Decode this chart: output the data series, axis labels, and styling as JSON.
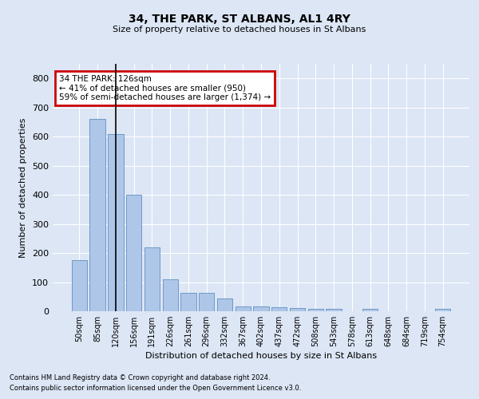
{
  "title": "34, THE PARK, ST ALBANS, AL1 4RY",
  "subtitle": "Size of property relative to detached houses in St Albans",
  "xlabel": "Distribution of detached houses by size in St Albans",
  "ylabel": "Number of detached properties",
  "footnote1": "Contains HM Land Registry data © Crown copyright and database right 2024.",
  "footnote2": "Contains public sector information licensed under the Open Government Licence v3.0.",
  "bar_labels": [
    "50sqm",
    "85sqm",
    "120sqm",
    "156sqm",
    "191sqm",
    "226sqm",
    "261sqm",
    "296sqm",
    "332sqm",
    "367sqm",
    "402sqm",
    "437sqm",
    "472sqm",
    "508sqm",
    "543sqm",
    "578sqm",
    "613sqm",
    "648sqm",
    "684sqm",
    "719sqm",
    "754sqm"
  ],
  "bar_values": [
    175,
    662,
    610,
    400,
    218,
    110,
    63,
    63,
    44,
    17,
    16,
    14,
    12,
    7,
    7,
    0,
    8,
    0,
    0,
    0,
    7
  ],
  "bar_color": "#aec6e8",
  "bar_edge_color": "#6090c0",
  "bg_color": "#dce6f5",
  "grid_color": "#ffffff",
  "property_bin_index": 2,
  "annotation_title": "34 THE PARK: 126sqm",
  "annotation_line1": "← 41% of detached houses are smaller (950)",
  "annotation_line2": "59% of semi-detached houses are larger (1,374) →",
  "annotation_box_color": "#ffffff",
  "annotation_box_edge_color": "#cc0000",
  "vline_color": "#000000",
  "ylim": [
    0,
    850
  ],
  "yticks": [
    0,
    100,
    200,
    300,
    400,
    500,
    600,
    700,
    800
  ]
}
